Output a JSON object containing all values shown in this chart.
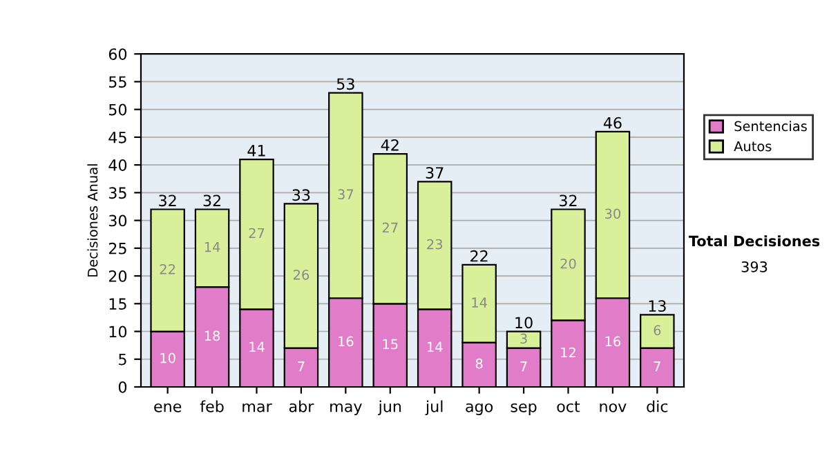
{
  "chart_data": {
    "type": "bar",
    "stacked": true,
    "ylabel": "Decisiones Anual",
    "categories": [
      "ene",
      "feb",
      "mar",
      "abr",
      "may",
      "jun",
      "jul",
      "ago",
      "sep",
      "oct",
      "nov",
      "dic"
    ],
    "series": [
      {
        "name": "Sentencias",
        "color": "#e07cc8",
        "values": [
          10,
          18,
          14,
          7,
          16,
          15,
          14,
          8,
          7,
          12,
          16,
          7
        ]
      },
      {
        "name": "Autos",
        "color": "#d9f09a",
        "values": [
          22,
          14,
          27,
          26,
          37,
          27,
          23,
          14,
          3,
          20,
          30,
          6
        ]
      }
    ],
    "totals": [
      "32",
      "32",
      "41",
      "33",
      "53",
      "42",
      "37",
      "22",
      "10",
      "32",
      "46",
      "13"
    ],
    "data_labels": true,
    "ylim": [
      0,
      60
    ],
    "yticks": [
      0,
      5,
      10,
      15,
      20,
      25,
      30,
      35,
      40,
      45,
      50,
      55,
      60
    ],
    "grid": "y",
    "legend": "right",
    "annotations": [
      "Total Decisiones",
      "393"
    ]
  }
}
